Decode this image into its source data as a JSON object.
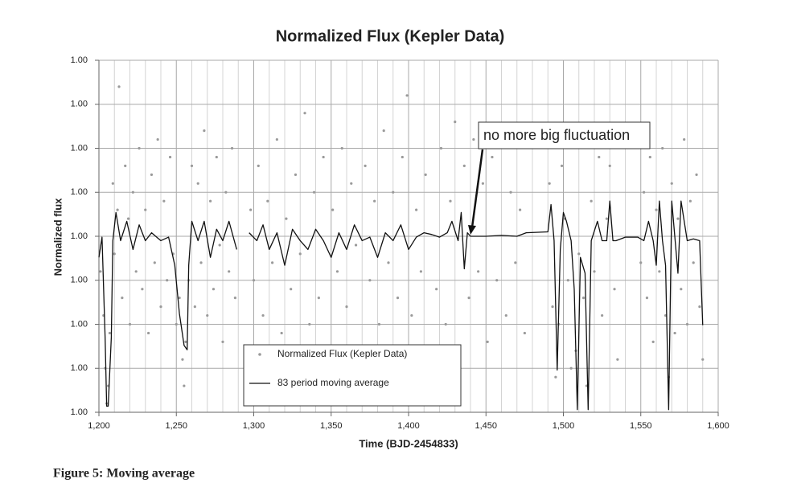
{
  "chart_data": {
    "type": "scatter",
    "title": "Normalized Flux (Kepler Data)",
    "x_label": "Time (BJD-2454833)",
    "y_label": "Normalized flux",
    "caption": "Figure 5: Moving average",
    "annotation": "no more big fluctuation",
    "legend": "lower center",
    "grid": true,
    "xlim": [
      1200,
      1600
    ],
    "xticks": [
      {
        "value": 1200,
        "label": "1,200"
      },
      {
        "value": 1250,
        "label": "1,250"
      },
      {
        "value": 1300,
        "label": "1,300"
      },
      {
        "value": 1350,
        "label": "1,350"
      },
      {
        "value": 1400,
        "label": "1,400"
      },
      {
        "value": 1450,
        "label": "1,450"
      },
      {
        "value": 1500,
        "label": "1,500"
      },
      {
        "value": 1550,
        "label": "1,550"
      },
      {
        "value": 1600,
        "label": "1,600"
      }
    ],
    "ylim": [
      0.998,
      1.002
    ],
    "yticks": [
      {
        "value": 0.998,
        "label": "1.00"
      },
      {
        "value": 0.9985,
        "label": "1.00"
      },
      {
        "value": 0.999,
        "label": "1.00"
      },
      {
        "value": 0.9995,
        "label": "1.00"
      },
      {
        "value": 1.0,
        "label": "1.00"
      },
      {
        "value": 1.0005,
        "label": "1.00"
      },
      {
        "value": 1.001,
        "label": "1.00"
      },
      {
        "value": 1.0015,
        "label": "1.00"
      },
      {
        "value": 1.002,
        "label": "1.00"
      }
    ],
    "series": [
      {
        "name": "Normalized Flux (Kepler Data)",
        "type": "scatter",
        "color": "#9a9a9a",
        "x": [
          1201,
          1203,
          1204,
          1205,
          1206,
          1207,
          1209,
          1210,
          1212,
          1213,
          1215,
          1217,
          1219,
          1220,
          1222,
          1224,
          1226,
          1228,
          1230,
          1232,
          1234,
          1236,
          1238,
          1240,
          1242,
          1244,
          1246,
          1248,
          1250,
          1252,
          1254,
          1255,
          1256,
          1258,
          1260,
          1262,
          1264,
          1266,
          1268,
          1270,
          1272,
          1274,
          1276,
          1278,
          1280,
          1282,
          1284,
          1286,
          1288,
          1298,
          1300,
          1303,
          1306,
          1309,
          1312,
          1315,
          1318,
          1321,
          1324,
          1327,
          1330,
          1333,
          1336,
          1339,
          1342,
          1345,
          1348,
          1351,
          1354,
          1357,
          1360,
          1363,
          1366,
          1369,
          1372,
          1375,
          1378,
          1381,
          1384,
          1387,
          1390,
          1393,
          1396,
          1399,
          1402,
          1405,
          1408,
          1411,
          1418,
          1421,
          1424,
          1427,
          1430,
          1433,
          1436,
          1439,
          1442,
          1445,
          1448,
          1451,
          1454,
          1457,
          1460,
          1463,
          1466,
          1469,
          1472,
          1475,
          1491,
          1493,
          1495,
          1497,
          1499,
          1501,
          1503,
          1505,
          1508,
          1510,
          1513,
          1515,
          1518,
          1520,
          1523,
          1525,
          1528,
          1530,
          1533,
          1535,
          1550,
          1552,
          1554,
          1556,
          1558,
          1560,
          1562,
          1564,
          1566,
          1568,
          1570,
          1572,
          1574,
          1576,
          1578,
          1580,
          1582,
          1584,
          1586,
          1588,
          1590
        ],
        "values": [
          0.9996,
          0.9991,
          0.9985,
          0.9981,
          0.9983,
          0.9989,
          1.0006,
          0.9998,
          1.0003,
          1.0017,
          0.9993,
          1.0008,
          1.0002,
          0.999,
          1.0005,
          0.9996,
          1.001,
          0.9994,
          1.0003,
          0.9989,
          1.0007,
          0.9997,
          1.0011,
          0.9992,
          1.0004,
          0.9995,
          1.0009,
          0.9998,
          0.999,
          0.9993,
          0.9986,
          0.9983,
          0.9988,
          0.9995,
          1.0008,
          0.9992,
          1.0006,
          0.9997,
          1.0012,
          0.9991,
          1.0004,
          0.9994,
          1.0009,
          0.9999,
          0.9988,
          1.0005,
          0.9996,
          1.001,
          0.9993,
          1.0003,
          0.9995,
          1.0008,
          0.9991,
          1.0004,
          0.9997,
          1.0011,
          0.9989,
          1.0002,
          0.9994,
          1.0007,
          0.9998,
          1.0014,
          0.999,
          1.0005,
          0.9993,
          1.0009,
          0.9987,
          1.0003,
          0.9996,
          1.001,
          0.9992,
          1.0006,
          0.9999,
          0.9986,
          1.0008,
          0.9995,
          1.0004,
          0.999,
          1.0012,
          0.9997,
          1.0005,
          0.9993,
          1.0009,
          1.0016,
          0.9991,
          1.0003,
          0.9996,
          1.0007,
          0.9994,
          1.001,
          0.999,
          1.0004,
          1.0013,
          0.9986,
          1.0008,
          0.9993,
          1.0011,
          0.9996,
          1.0006,
          0.9988,
          1.0009,
          0.9995,
          1.0012,
          0.9991,
          1.0005,
          0.9997,
          1.0003,
          0.9989,
          1.0006,
          0.9992,
          0.9984,
          0.999,
          1.0008,
          1.0002,
          0.9995,
          0.9985,
          0.9987,
          0.9998,
          0.9993,
          0.9983,
          1.0004,
          0.9996,
          1.0009,
          0.9991,
          1.0002,
          1.0008,
          0.9994,
          0.9986,
          0.9997,
          1.0005,
          0.9993,
          1.0009,
          0.9988,
          1.0003,
          0.9996,
          1.001,
          0.9991,
          0.9984,
          1.0006,
          0.9989,
          1.0002,
          0.9994,
          1.0011,
          0.999,
          1.0004,
          0.9997,
          1.0007,
          0.9992,
          0.9986
        ]
      },
      {
        "name": "83 period moving average",
        "type": "line",
        "color": "#111111",
        "x": [
          1200,
          1202,
          1204,
          1205,
          1206,
          1208,
          1209,
          1211,
          1214,
          1218,
          1222,
          1226,
          1230,
          1234,
          1240,
          1245,
          1249,
          1252,
          1255,
          1257,
          1258,
          1260,
          1264,
          1268,
          1272,
          1276,
          1280,
          1284,
          1289,
          1293,
          1297,
          1302,
          1306,
          1310,
          1315,
          1320,
          1325,
          1330,
          1335,
          1340,
          1345,
          1350,
          1355,
          1360,
          1365,
          1370,
          1375,
          1380,
          1385,
          1390,
          1395,
          1400,
          1405,
          1410,
          1415,
          1420,
          1425,
          1428,
          1432,
          1434,
          1436,
          1438,
          1440,
          1450,
          1460,
          1470,
          1476,
          1490,
          1492,
          1494,
          1496,
          1498,
          1500,
          1502,
          1505,
          1507,
          1509,
          1511,
          1514,
          1516,
          1518,
          1522,
          1525,
          1528,
          1530,
          1532,
          1534,
          1540,
          1548,
          1552,
          1555,
          1558,
          1560,
          1562,
          1564,
          1566,
          1568,
          1570,
          1574,
          1576,
          1580,
          1584,
          1588,
          1590
        ],
        "values": [
          0.99976,
          0.99999,
          0.99885,
          0.99807,
          0.99807,
          0.99885,
          0.99995,
          1.00027,
          0.99995,
          1.00017,
          0.99985,
          1.00013,
          0.99995,
          1.00004,
          0.99995,
          0.99999,
          0.99967,
          0.99912,
          0.99876,
          0.99871,
          0.99967,
          1.00017,
          0.99995,
          1.00017,
          0.99976,
          1.00008,
          0.99995,
          1.00017,
          0.99985,
          null,
          1.00004,
          0.99995,
          1.00013,
          0.99985,
          1.00004,
          0.99967,
          1.00008,
          0.99995,
          0.99985,
          1.00008,
          0.99995,
          0.99976,
          1.00004,
          0.99985,
          1.00013,
          0.99995,
          0.99999,
          0.99976,
          1.00004,
          0.99995,
          1.00013,
          0.99985,
          0.99999,
          1.00004,
          1.00002,
          0.99999,
          1.00004,
          1.00017,
          0.99995,
          1.00027,
          0.99963,
          1.00004,
          1.0,
          1.0,
          1.00001,
          1.0,
          1.00004,
          1.00005,
          1.00036,
          0.99995,
          0.99848,
          0.99985,
          1.00027,
          1.00017,
          0.99995,
          0.9994,
          0.99803,
          0.99976,
          0.99958,
          0.99803,
          0.99995,
          1.00017,
          0.99995,
          0.99995,
          1.0004,
          0.99995,
          0.99995,
          0.99999,
          0.99999,
          0.99995,
          1.00017,
          0.99995,
          0.99967,
          1.0004,
          0.99995,
          0.99967,
          0.99803,
          1.0004,
          0.99958,
          1.0004,
          0.99995,
          0.99997,
          0.99995,
          0.99899
        ]
      }
    ]
  }
}
